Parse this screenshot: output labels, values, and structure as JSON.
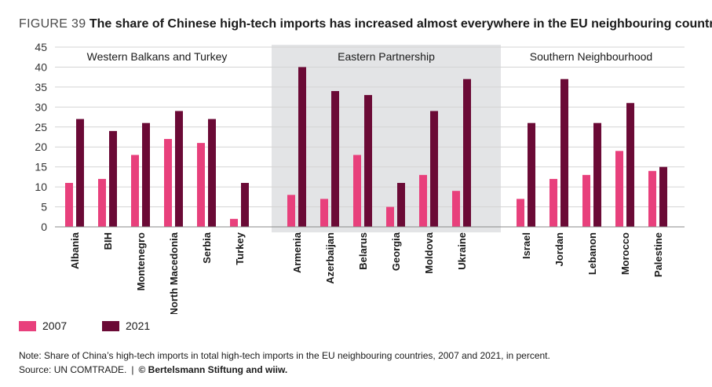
{
  "figure": {
    "label": "FIGURE 39",
    "title": "The share of Chinese high-tech imports has increased almost everywhere in the EU neighbouring countries"
  },
  "chart_data": {
    "type": "bar",
    "ylim": [
      0,
      45
    ],
    "yticks": [
      0,
      5,
      10,
      15,
      20,
      25,
      30,
      35,
      40,
      45
    ],
    "grid": true,
    "legend_position": "bottom-left",
    "groups": [
      {
        "name": "Western Balkans and Turkey",
        "shaded": false,
        "categories": [
          "Albania",
          "BIH",
          "Montenegro",
          "North Macedonia",
          "Serbia",
          "Turkey"
        ]
      },
      {
        "name": "Eastern Partnership",
        "shaded": true,
        "categories": [
          "Armenia",
          "Azerbaijan",
          "Belarus",
          "Georgia",
          "Moldova",
          "Ukraine"
        ]
      },
      {
        "name": "Southern Neighbourhood",
        "shaded": false,
        "categories": [
          "Israel",
          "Jordan",
          "Lebanon",
          "Morocco",
          "Palestine"
        ]
      }
    ],
    "series": [
      {
        "name": "2007",
        "color": "#e8407c",
        "values": [
          11,
          12,
          18,
          22,
          21,
          2,
          8,
          7,
          18,
          5,
          13,
          9,
          7,
          12,
          13,
          19,
          14
        ]
      },
      {
        "name": "2021",
        "color": "#6b0a36",
        "values": [
          27,
          24,
          26,
          29,
          27,
          11,
          40,
          34,
          33,
          11,
          29,
          37,
          26,
          37,
          26,
          31,
          15
        ]
      }
    ]
  },
  "notes": {
    "note": "Note: Share of China’s high-tech imports in total high-tech imports in the EU neighbouring countries, 2007 and 2021, in percent.",
    "source_prefix": "Source: UN COMTRADE.",
    "separator": "|",
    "copyright": "© Bertelsmann Stiftung and wiiw."
  },
  "colors": {
    "shade": "#e3e4e6",
    "grid": "#d4d4d4",
    "axis": "#8a8a8a"
  }
}
